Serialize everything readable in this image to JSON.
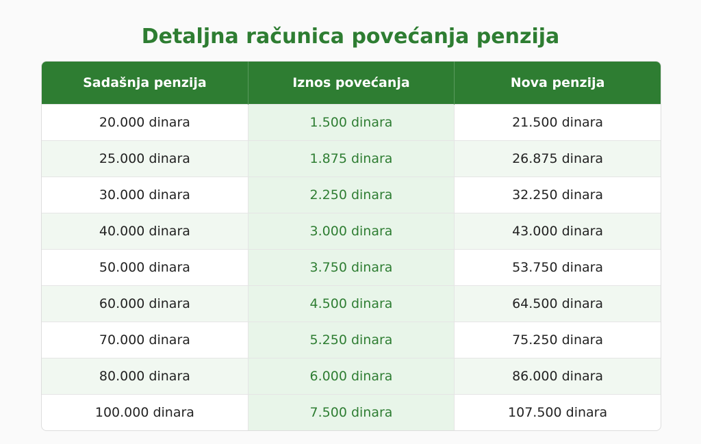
{
  "title": "Detaljna računica povećanja penzija",
  "table": {
    "headers": [
      "Sadašnja penzija",
      "Iznos povećanja",
      "Nova penzija"
    ],
    "rows": [
      [
        "20.000 dinara",
        "1.500 dinara",
        "21.500 dinara"
      ],
      [
        "25.000 dinara",
        "1.875 dinara",
        "26.875 dinara"
      ],
      [
        "30.000 dinara",
        "2.250 dinara",
        "32.250 dinara"
      ],
      [
        "40.000 dinara",
        "3.000 dinara",
        "43.000 dinara"
      ],
      [
        "50.000 dinara",
        "3.750 dinara",
        "53.750 dinara"
      ],
      [
        "60.000 dinara",
        "4.500 dinara",
        "64.500 dinara"
      ],
      [
        "70.000 dinara",
        "5.250 dinara",
        "75.250 dinara"
      ],
      [
        "80.000 dinara",
        "6.000 dinara",
        "86.000 dinara"
      ],
      [
        "100.000 dinara",
        "7.500 dinara",
        "107.500 dinara"
      ]
    ]
  }
}
